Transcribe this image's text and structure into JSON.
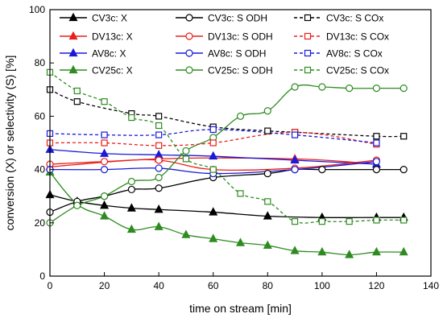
{
  "chart_data": {
    "type": "line",
    "xlabel": "time on stream [min]",
    "ylabel": "conversion (X) or selectivity (S) [%]",
    "xlim": [
      0,
      140
    ],
    "ylim": [
      0,
      100
    ],
    "xticks": [
      0,
      20,
      40,
      60,
      80,
      100,
      120,
      140
    ],
    "yticks": [
      0,
      20,
      40,
      60,
      80,
      100
    ],
    "grid": false,
    "legend_position": "top",
    "series": [
      {
        "name": "CV3c: X",
        "color": "#000000",
        "marker": "triangle",
        "fill": "filled",
        "dash": "solid",
        "x": [
          0,
          10,
          20,
          30,
          40,
          60,
          80,
          100,
          120,
          130
        ],
        "y": [
          30.5,
          28,
          26.5,
          25.5,
          25,
          24,
          22.5,
          22,
          22,
          22
        ]
      },
      {
        "name": "DV13c: X",
        "color": "#e8201b",
        "marker": "triangle",
        "fill": "filled",
        "dash": "solid",
        "x": [
          0,
          40,
          90,
          120
        ],
        "y": [
          41,
          44,
          44,
          42
        ]
      },
      {
        "name": "AV8c: X",
        "color": "#1a1ad8",
        "marker": "triangle",
        "fill": "filled",
        "dash": "solid",
        "x": [
          0,
          20,
          40,
          60,
          90,
          120
        ],
        "y": [
          47.5,
          46,
          45.5,
          45,
          43.5,
          42
        ]
      },
      {
        "name": "CV25c: X",
        "color": "#2e8b20",
        "marker": "triangle",
        "fill": "filled",
        "dash": "solid",
        "x": [
          0,
          10,
          20,
          30,
          40,
          50,
          60,
          70,
          80,
          90,
          100,
          110,
          120,
          130
        ],
        "y": [
          39,
          27,
          22.5,
          17.5,
          18.5,
          15.5,
          14,
          12.5,
          11.5,
          9.5,
          9,
          8,
          9,
          9
        ]
      },
      {
        "name": "CV3c: S ODH",
        "color": "#000000",
        "marker": "circle",
        "fill": "open",
        "dash": "solid",
        "x": [
          0,
          10,
          20,
          30,
          40,
          60,
          80,
          90,
          100,
          120,
          130
        ],
        "y": [
          24,
          28,
          30,
          32.5,
          33,
          37,
          38.5,
          40,
          40,
          40,
          40
        ]
      },
      {
        "name": "DV13c: S ODH",
        "color": "#e8201b",
        "marker": "circle",
        "fill": "open",
        "dash": "solid",
        "x": [
          0,
          20,
          40,
          60,
          90,
          120
        ],
        "y": [
          42,
          43,
          43.5,
          40,
          40.5,
          43.5
        ]
      },
      {
        "name": "AV8c: S ODH",
        "color": "#1a1ad8",
        "marker": "circle",
        "fill": "open",
        "dash": "solid",
        "x": [
          0,
          20,
          40,
          60,
          90,
          120
        ],
        "y": [
          40,
          40,
          40.5,
          38.5,
          40,
          43
        ]
      },
      {
        "name": "CV25c: S ODH",
        "color": "#2e8b20",
        "marker": "circle",
        "fill": "open",
        "dash": "solid",
        "x": [
          0,
          10,
          20,
          30,
          40,
          50,
          60,
          70,
          80,
          90,
          100,
          110,
          120,
          130
        ],
        "y": [
          20,
          26.5,
          30,
          35.5,
          37,
          47,
          52,
          60,
          62,
          71,
          71,
          70.5,
          70.5,
          70.5
        ]
      },
      {
        "name": "CV3c: S COx",
        "color": "#000000",
        "marker": "square",
        "fill": "open",
        "dash": "dashed",
        "x": [
          0,
          10,
          30,
          40,
          60,
          80,
          90,
          120,
          130
        ],
        "y": [
          70,
          65.5,
          61,
          60,
          56,
          54.5,
          54,
          52.5,
          52.5
        ]
      },
      {
        "name": "DV13c: S COx",
        "color": "#e8201b",
        "marker": "square",
        "fill": "open",
        "dash": "dashed",
        "x": [
          0,
          20,
          40,
          60,
          90,
          120
        ],
        "y": [
          50,
          50,
          49,
          50,
          54,
          49.5
        ]
      },
      {
        "name": "AV8c: S COx",
        "color": "#1a1ad8",
        "marker": "square",
        "fill": "open",
        "dash": "dashed",
        "x": [
          0,
          20,
          40,
          60,
          90,
          120
        ],
        "y": [
          53.5,
          53,
          53,
          55,
          53,
          50
        ]
      },
      {
        "name": "CV25c: S COx",
        "color": "#2e8b20",
        "marker": "square",
        "fill": "open",
        "dash": "dashed",
        "x": [
          0,
          10,
          20,
          30,
          40,
          50,
          60,
          70,
          80,
          90,
          100,
          110,
          120,
          130
        ],
        "y": [
          76.5,
          69.5,
          65.5,
          59.5,
          56.5,
          44,
          40,
          31,
          28,
          20.5,
          20.5,
          20.5,
          21,
          21
        ]
      }
    ],
    "legend_order": [
      "CV3c: X",
      "CV3c: S ODH",
      "CV3c: S COx",
      "DV13c: X",
      "DV13c: S ODH",
      "DV13c: S COx",
      "AV8c: X",
      "AV8c: S ODH",
      "AV8c: S COx",
      "CV25c: X",
      "CV25c: S ODH",
      "CV25c: S COx"
    ]
  }
}
